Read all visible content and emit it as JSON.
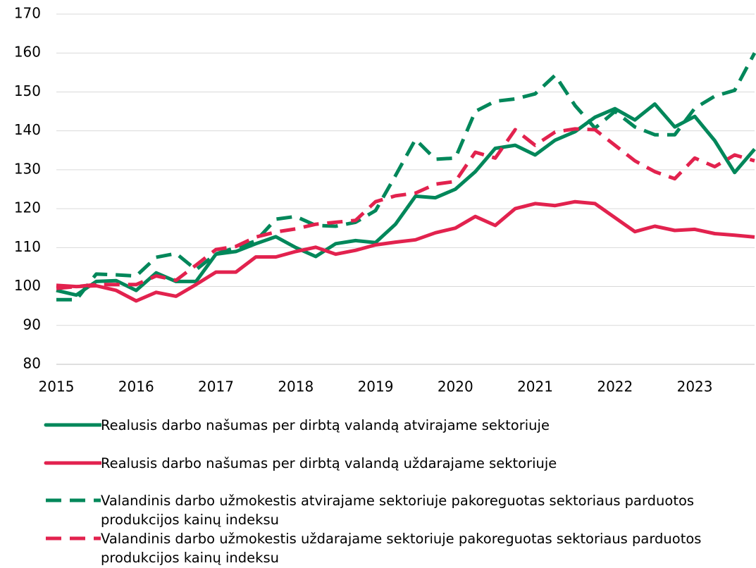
{
  "chart_data": {
    "type": "line",
    "categories": [
      "2015",
      null,
      null,
      null,
      "2016",
      null,
      null,
      null,
      "2017",
      null,
      null,
      null,
      "2018",
      null,
      null,
      null,
      "2019",
      null,
      null,
      null,
      "2020",
      null,
      null,
      null,
      "2021",
      null,
      null,
      null,
      "2022",
      null,
      null,
      null,
      "2023",
      null,
      null,
      null
    ],
    "ylim": [
      80,
      170
    ],
    "yticks": [
      80,
      90,
      100,
      110,
      120,
      130,
      140,
      150,
      160,
      170
    ],
    "grid": true,
    "series": [
      {
        "name": "Realusis darbo našumas per dirbtą valandą atvirajame sektoriuje",
        "color": "#00875a",
        "dashed": false,
        "values": [
          99,
          97.8,
          101.3,
          101.5,
          99,
          103.5,
          101.3,
          101.3,
          108.3,
          109,
          111,
          112.8,
          110,
          107.7,
          111,
          111.8,
          111.3,
          116,
          123.2,
          122.8,
          125,
          129.5,
          135.5,
          136.3,
          133.8,
          137.6,
          139.8,
          143.5,
          145.7,
          142.8,
          146.9,
          141,
          143.7,
          137.5,
          129.3,
          135.3
        ]
      },
      {
        "name": "Realusis darbo našumas per dirbtą valandą uždarajame sektoriuje",
        "color": "#e2224e",
        "dashed": false,
        "values": [
          100.3,
          100,
          100.2,
          99,
          96.3,
          98.5,
          97.5,
          100.5,
          103.7,
          103.7,
          107.6,
          107.6,
          109,
          110.1,
          108.3,
          109.3,
          110.7,
          111.4,
          112,
          113.8,
          115,
          118,
          115.7,
          120,
          121.3,
          120.8,
          121.8,
          121.3,
          117.7,
          114.1,
          115.5,
          114.4,
          114.7,
          113.6,
          113.2,
          112.7
        ]
      },
      {
        "name": "Valandinis darbo užmokestis atvirajame sektoriuje pakoreguotas sektoriaus parduotos produkcijos kainų indeksu",
        "color": "#00875a",
        "dashed": true,
        "values": [
          96.6,
          96.6,
          103.2,
          103,
          102.7,
          107.5,
          108.5,
          104.3,
          108.4,
          110,
          111.7,
          117.3,
          118,
          115.7,
          115.5,
          116.5,
          119.5,
          128.5,
          137.8,
          132.7,
          133,
          145,
          147.6,
          148.2,
          149.5,
          154.3,
          146.5,
          140.7,
          145,
          141,
          139,
          139,
          145.8,
          148.9,
          150.4,
          160
        ]
      },
      {
        "name": "Valandinis darbo užmokestis uždarajame sektoriuje pakoreguotas sektoriaus parduotos produkcijos kainų indeksu",
        "color": "#e2224e",
        "dashed": true,
        "values": [
          99.5,
          100,
          100.5,
          100.5,
          100.5,
          102.7,
          101.6,
          105.5,
          109.5,
          110.3,
          112.7,
          114,
          114.8,
          116,
          116.5,
          117,
          121.8,
          123.3,
          124,
          126.3,
          127,
          134.5,
          133,
          140.3,
          136.3,
          139.7,
          140.5,
          140.3,
          136.3,
          132.3,
          129.5,
          127.7,
          133,
          130.8,
          133.8,
          132.3
        ]
      }
    ]
  }
}
